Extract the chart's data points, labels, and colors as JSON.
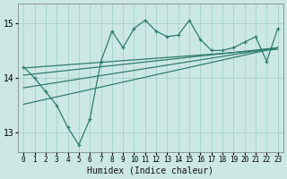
{
  "xlabel": "Humidex (Indice chaleur)",
  "ylabel": "",
  "bg_color": "#cce8e4",
  "grid_color": "#aad4ce",
  "line_color": "#2e7d6e",
  "xlim": [
    -0.5,
    23.5
  ],
  "ylim": [
    12.65,
    15.35
  ],
  "yticks": [
    13,
    14,
    15
  ],
  "xticks": [
    0,
    1,
    2,
    3,
    4,
    5,
    6,
    7,
    8,
    9,
    10,
    11,
    12,
    13,
    14,
    15,
    16,
    17,
    18,
    19,
    20,
    21,
    22,
    23
  ],
  "main_x": [
    0,
    1,
    2,
    3,
    4,
    5,
    6,
    7,
    8,
    9,
    10,
    11,
    12,
    13,
    14,
    15,
    16,
    17,
    18,
    19,
    20,
    21,
    22,
    23
  ],
  "main_y": [
    14.2,
    14.0,
    13.75,
    13.5,
    13.1,
    12.78,
    13.25,
    14.3,
    14.85,
    14.55,
    14.9,
    15.05,
    14.85,
    14.75,
    14.78,
    15.05,
    14.7,
    14.5,
    14.5,
    14.55,
    14.65,
    14.75,
    14.3,
    14.9
  ],
  "trend_lines": [
    {
      "x0": 0,
      "y0": 14.18,
      "x1": 23,
      "y1": 14.52
    },
    {
      "x0": 0,
      "y0": 14.05,
      "x1": 23,
      "y1": 14.55
    },
    {
      "x0": 0,
      "y0": 13.82,
      "x1": 23,
      "y1": 14.55
    },
    {
      "x0": 0,
      "y0": 13.52,
      "x1": 23,
      "y1": 14.55
    }
  ],
  "xlabel_fontsize": 7,
  "xtick_fontsize": 5.5,
  "ytick_fontsize": 7
}
